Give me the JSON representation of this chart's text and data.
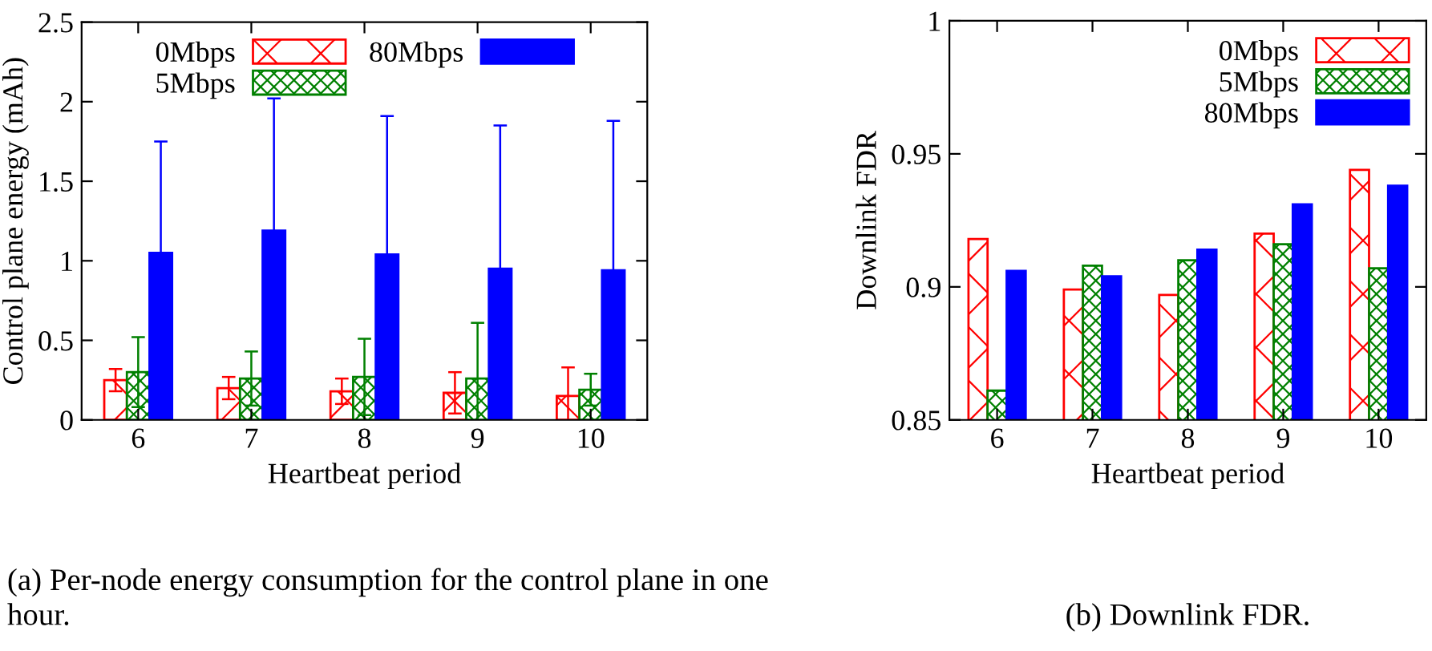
{
  "chart_data": [
    {
      "type": "bar",
      "xlabel": "Heartbeat period",
      "ylabel": "Control plane energy (mAh)",
      "categories": [
        "6",
        "7",
        "8",
        "9",
        "10"
      ],
      "series": [
        {
          "name": "0Mbps",
          "color": "#ff0000",
          "values": [
            0.25,
            0.2,
            0.18,
            0.17,
            0.15
          ],
          "errors": [
            0.07,
            0.07,
            0.08,
            0.13,
            0.18
          ]
        },
        {
          "name": "5Mbps",
          "color": "#008000",
          "values": [
            0.3,
            0.26,
            0.27,
            0.26,
            0.19
          ],
          "errors": [
            0.22,
            0.17,
            0.24,
            0.35,
            0.1
          ]
        },
        {
          "name": "80Mbps",
          "color": "#0000ff",
          "values": [
            1.05,
            1.19,
            1.04,
            0.95,
            0.94
          ],
          "errors": [
            0.7,
            0.83,
            0.87,
            0.9,
            0.94
          ]
        }
      ],
      "ylim": [
        0,
        2.5
      ],
      "yticks": [
        0,
        0.5,
        1,
        1.5,
        2,
        2.5
      ],
      "legend": "top",
      "grid": false,
      "annotations": [
        "(a) Per-node energy consumption for the control plane in one hour."
      ]
    },
    {
      "type": "bar",
      "xlabel": "Heartbeat period",
      "ylabel": "Downlink FDR",
      "categories": [
        "6",
        "7",
        "8",
        "9",
        "10"
      ],
      "series": [
        {
          "name": "0Mbps",
          "color": "#ff0000",
          "values": [
            0.918,
            0.899,
            0.897,
            0.92,
            0.944
          ]
        },
        {
          "name": "5Mbps",
          "color": "#008000",
          "values": [
            0.861,
            0.908,
            0.91,
            0.916,
            0.907
          ]
        },
        {
          "name": "80Mbps",
          "color": "#0000ff",
          "values": [
            0.906,
            0.904,
            0.914,
            0.931,
            0.938
          ]
        }
      ],
      "ylim": [
        0.85,
        1
      ],
      "yticks": [
        0.85,
        0.9,
        0.95,
        1
      ],
      "legend": "top right",
      "grid": false,
      "annotations": [
        "(b) Downlink FDR."
      ]
    }
  ]
}
